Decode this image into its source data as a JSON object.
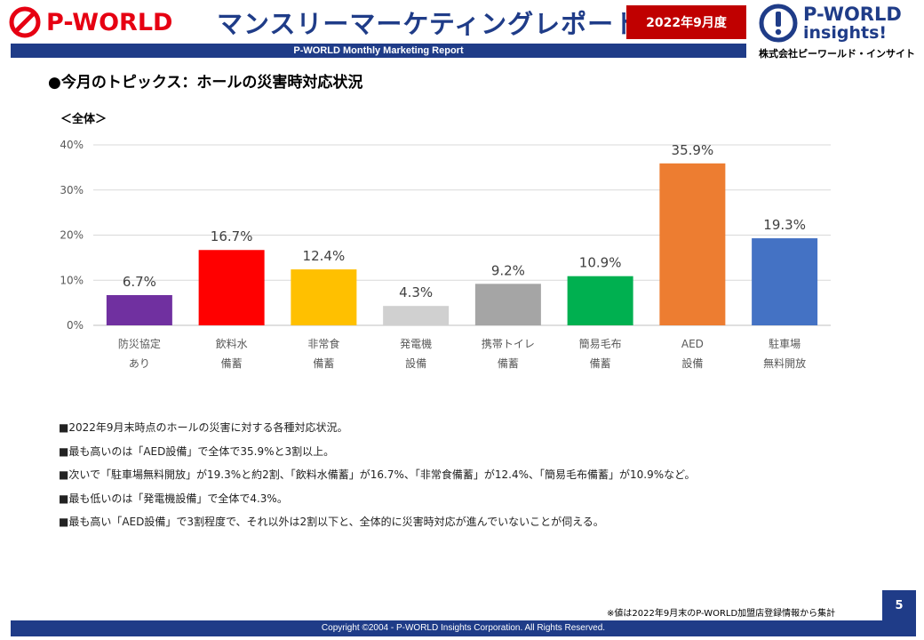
{
  "header": {
    "logo_left": "P-WORLD",
    "title": "マンスリーマーケティングレポート",
    "date_badge": "2022年9月度",
    "subtitle": "P-WORLD Monthly Marketing Report",
    "logo_right_line1": "P-WORLD",
    "logo_right_line2": "insights!",
    "logo_right_company": "株式会社ピーワールド・インサイト"
  },
  "section": {
    "title": "●今月のトピックス：ホールの災害時対応状況"
  },
  "chart_data": {
    "type": "bar",
    "title": "＜全体＞",
    "categories": [
      [
        "防災協定",
        "あり"
      ],
      [
        "飲料水",
        "備蓄"
      ],
      [
        "非常食",
        "備蓄"
      ],
      [
        "発電機",
        "設備"
      ],
      [
        "携帯トイレ",
        "備蓄"
      ],
      [
        "簡易毛布",
        "備蓄"
      ],
      [
        "AED",
        "設備"
      ],
      [
        "駐車場",
        "無料開放"
      ]
    ],
    "values": [
      6.7,
      16.7,
      12.4,
      4.3,
      9.2,
      10.9,
      35.9,
      19.3
    ],
    "value_labels": [
      "6.7%",
      "16.7%",
      "12.4%",
      "4.3%",
      "9.2%",
      "10.9%",
      "35.9%",
      "19.3%"
    ],
    "colors": [
      "#7030a0",
      "#ff0000",
      "#ffc000",
      "#d0d0d0",
      "#a5a5a5",
      "#00b050",
      "#ed7d31",
      "#4472c4"
    ],
    "ylim": [
      0,
      40
    ],
    "yticks": [
      0,
      10,
      20,
      30,
      40
    ],
    "ytick_labels": [
      "0%",
      "10%",
      "20%",
      "30%",
      "40%"
    ],
    "grid": true,
    "legend": "none"
  },
  "notes": [
    "■2022年9月末時点のホールの災害に対する各種対応状況。",
    "■最も高いのは「AED設備」で全体で35.9%と3割以上。",
    "■次いで「駐車場無料開放」が19.3%と約2割、「飲料水備蓄」が16.7%、「非常食備蓄」が12.4%、「簡易毛布備蓄」が10.9%など。",
    "■最も低いのは「発電機設備」で全体で4.3%。",
    "■最も高い「AED設備」で3割程度で、それ以外は2割以下と、全体的に災害時対応が進んでいないことが伺える。"
  ],
  "footer": {
    "source_note": "※値は2022年9月末のP-WORLD加盟店登録情報から集計",
    "page_number": "5",
    "copyright": "Copyright ©2004 -  P-WORLD Insights Corporation. All Rights Reserved."
  }
}
